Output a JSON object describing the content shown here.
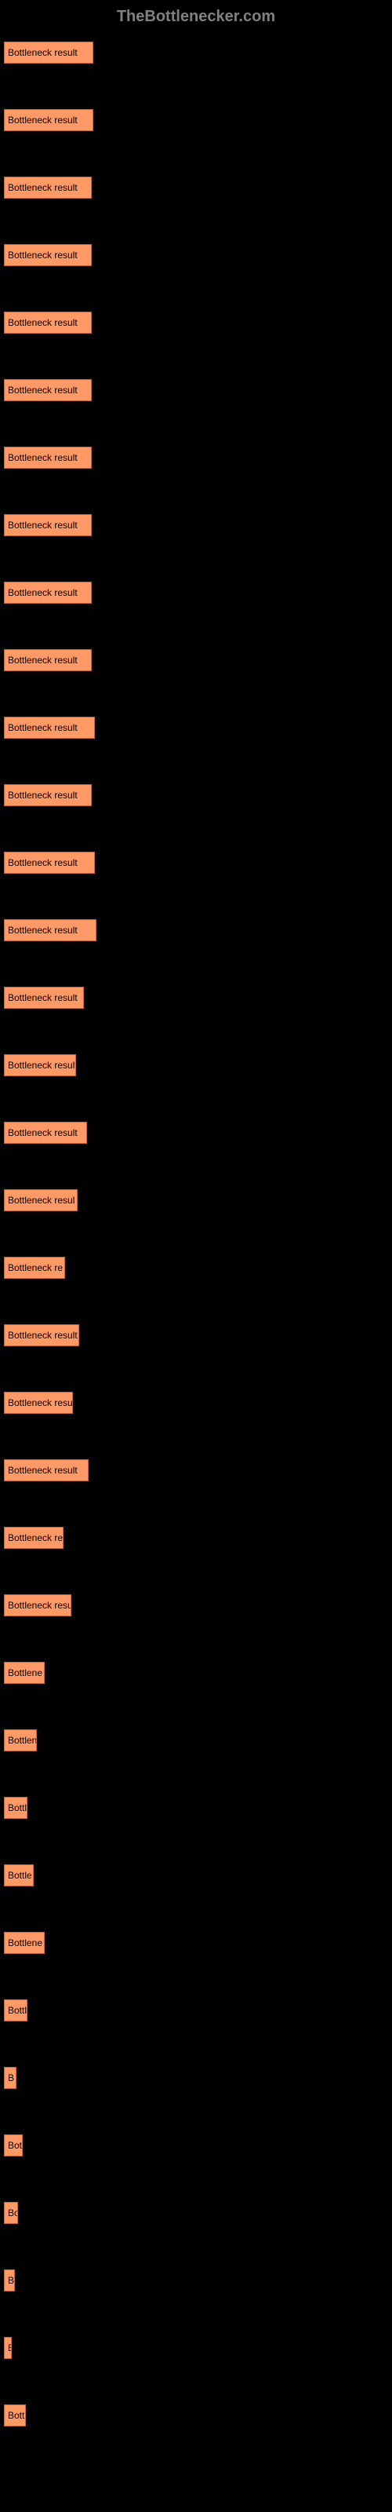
{
  "header": "TheBottlenecker.com",
  "bars": [
    {
      "label": "Bottleneck result",
      "width": 114
    },
    {
      "label": "Bottleneck result",
      "width": 114
    },
    {
      "label": "Bottleneck result",
      "width": 112
    },
    {
      "label": "Bottleneck result",
      "width": 112
    },
    {
      "label": "Bottleneck result",
      "width": 112
    },
    {
      "label": "Bottleneck result",
      "width": 112
    },
    {
      "label": "Bottleneck result",
      "width": 112
    },
    {
      "label": "Bottleneck result",
      "width": 112
    },
    {
      "label": "Bottleneck result",
      "width": 112
    },
    {
      "label": "Bottleneck result",
      "width": 112
    },
    {
      "label": "Bottleneck result",
      "width": 116
    },
    {
      "label": "Bottleneck result",
      "width": 112
    },
    {
      "label": "Bottleneck result",
      "width": 116
    },
    {
      "label": "Bottleneck result",
      "width": 118
    },
    {
      "label": "Bottleneck result",
      "width": 102
    },
    {
      "label": "Bottleneck result",
      "width": 92
    },
    {
      "label": "Bottleneck result",
      "width": 106
    },
    {
      "label": "Bottleneck resul",
      "width": 94
    },
    {
      "label": "Bottleneck re",
      "width": 78
    },
    {
      "label": "Bottleneck result",
      "width": 96
    },
    {
      "label": "Bottleneck resu",
      "width": 88
    },
    {
      "label": "Bottleneck result",
      "width": 108
    },
    {
      "label": "Bottleneck re",
      "width": 76
    },
    {
      "label": "Bottleneck resu",
      "width": 86
    },
    {
      "label": "Bottlene",
      "width": 52
    },
    {
      "label": "Bottlen",
      "width": 42
    },
    {
      "label": "Bottl",
      "width": 30
    },
    {
      "label": "Bottle",
      "width": 38
    },
    {
      "label": "Bottlene",
      "width": 52
    },
    {
      "label": "Bottl",
      "width": 30
    },
    {
      "label": "B",
      "width": 16
    },
    {
      "label": "Bot",
      "width": 24
    },
    {
      "label": "Bo",
      "width": 18
    },
    {
      "label": "B",
      "width": 14
    },
    {
      "label": "B",
      "width": 10
    },
    {
      "label": "Bott",
      "width": 28
    }
  ],
  "colors": {
    "background": "#000000",
    "bar_fill": "#ff9966",
    "bar_border": "#cc6633",
    "header_text": "#808080",
    "label_text": "#000000"
  }
}
